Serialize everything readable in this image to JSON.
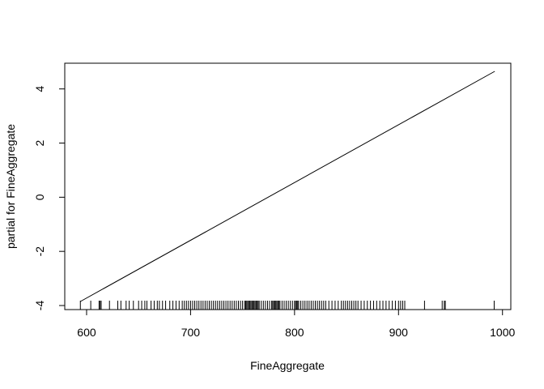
{
  "chart_data": {
    "type": "line",
    "title": "",
    "xlabel": "FineAggregate",
    "ylabel": "partial for FineAggregate",
    "xlim": [
      579,
      1008
    ],
    "ylim": [
      -4.15,
      4.95
    ],
    "x_ticks": [
      600,
      700,
      800,
      900,
      1000
    ],
    "y_ticks": [
      -4,
      -2,
      0,
      2,
      4
    ],
    "grid": false,
    "series": [
      {
        "x": [
          594,
          992.6
        ],
        "y": [
          -3.85,
          4.65
        ]
      }
    ],
    "rug": [
      594,
      604,
      612,
      613,
      614,
      622,
      630,
      633,
      638,
      641,
      645,
      650,
      653,
      656,
      658,
      662,
      665,
      668,
      670,
      673,
      676,
      680,
      683,
      686,
      689,
      692,
      694,
      696,
      698,
      700,
      702,
      704,
      706,
      708,
      710,
      712,
      714,
      716,
      718,
      720,
      722,
      724,
      726,
      728,
      730,
      732,
      734,
      736,
      738,
      740,
      742,
      744,
      746,
      748,
      750,
      752,
      753,
      754,
      755,
      756,
      757,
      758,
      759,
      760,
      761,
      762,
      763,
      764,
      765,
      766,
      768,
      770,
      772,
      774,
      776,
      778,
      779,
      780,
      781,
      782,
      783,
      784,
      785,
      786,
      788,
      790,
      792,
      794,
      796,
      798,
      800,
      801,
      802,
      803,
      804,
      806,
      808,
      810,
      812,
      814,
      816,
      818,
      820,
      822,
      824,
      826,
      828,
      830,
      833,
      836,
      839,
      842,
      845,
      847,
      849,
      851,
      853,
      855,
      857,
      859,
      861,
      864,
      867,
      870,
      873,
      876,
      879,
      882,
      885,
      888,
      891,
      894,
      897,
      900,
      902,
      904,
      906,
      925,
      942,
      944,
      945,
      992
    ]
  }
}
